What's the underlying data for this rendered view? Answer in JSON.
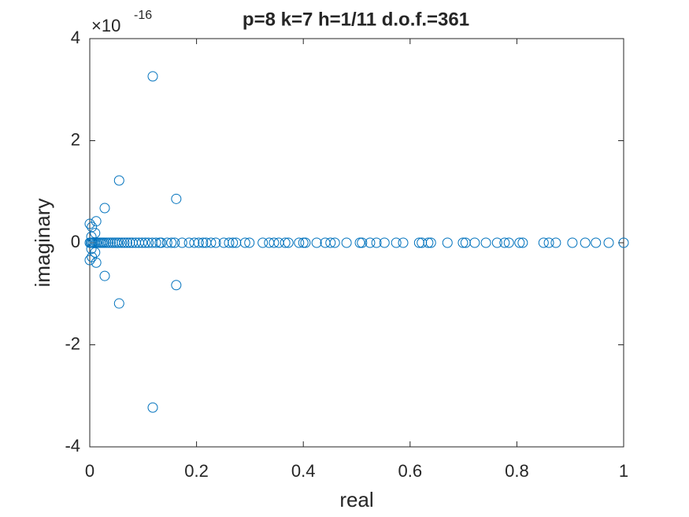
{
  "chart_data": {
    "type": "scatter",
    "title": "p=8 k=7 h=1/11 d.o.f.=361",
    "xlabel": "real",
    "ylabel": "imaginary",
    "y_exponent": {
      "base": "×10",
      "power": "-16"
    },
    "xlim": [
      0,
      1
    ],
    "ylim": [
      -4,
      4
    ],
    "xticks": [
      0,
      0.2,
      0.4,
      0.6,
      0.8,
      1
    ],
    "yticks": [
      -4,
      -2,
      0,
      2,
      4
    ],
    "marker": "open-circle",
    "series": [
      {
        "color": "#0072bd",
        "x": [
          0,
          0.002,
          0.004,
          0.006,
          0.009,
          0.012,
          0.015,
          0.018,
          0.021,
          0.024,
          0.027,
          0.031,
          0.035,
          0.039,
          0.043,
          0.047,
          0.051,
          0.055,
          0.06,
          0.065,
          0.07,
          0.075,
          0.08,
          0.086,
          0.092,
          0.098,
          0.104,
          0.11,
          0.117,
          0.124,
          0.131,
          0.134,
          0.145,
          0.153,
          0.159,
          0.173,
          0.186,
          0.196,
          0.204,
          0.212,
          0.218,
          0.227,
          0.236,
          0.251,
          0.261,
          0.268,
          0.274,
          0.291,
          0.299,
          0.324,
          0.336,
          0.345,
          0.354,
          0.366,
          0.372,
          0.392,
          0.4,
          0.404,
          0.425,
          0.441,
          0.451,
          0.459,
          0.481,
          0.506,
          0.51,
          0.525,
          0.537,
          0.552,
          0.574,
          0.587,
          0.617,
          0.622,
          0.634,
          0.639,
          0.67,
          0.699,
          0.704,
          0.721,
          0.742,
          0.763,
          0.777,
          0.785,
          0.805,
          0.811,
          0.85,
          0.86,
          0.873,
          0.904,
          0.928,
          0.948,
          0.972,
          1,
          0.118,
          0.118,
          0.055,
          0.055,
          0.162,
          0.162,
          0.028,
          0.028,
          0,
          0,
          0.012,
          0.012,
          0.004,
          0.004,
          0.01,
          0.01,
          0.003,
          0.003
        ],
        "y": [
          0,
          0,
          0,
          0,
          0,
          0,
          0,
          0,
          0,
          0,
          0,
          0,
          0,
          0,
          0,
          0,
          0,
          0,
          0,
          0,
          0,
          0,
          0,
          0,
          0,
          0,
          0,
          0,
          0,
          0,
          0,
          0,
          0,
          0,
          0,
          0,
          0,
          0,
          0,
          0,
          0,
          0,
          0,
          0,
          0,
          0,
          0,
          0,
          0,
          0,
          0,
          0,
          0,
          0,
          0,
          0,
          0,
          0,
          0,
          0,
          0,
          0,
          0,
          0,
          0,
          0,
          0,
          0,
          0,
          0,
          0,
          0,
          0,
          0,
          0,
          0,
          0,
          0,
          0,
          0,
          0,
          0,
          0,
          0,
          0,
          0,
          0,
          0,
          0,
          0,
          0,
          0,
          3.26,
          -3.23,
          1.22,
          -1.19,
          0.86,
          -0.83,
          0.68,
          -0.65,
          0.37,
          -0.34,
          0.42,
          -0.39,
          0.31,
          -0.28,
          0.19,
          -0.19,
          0.12,
          -0.12
        ]
      }
    ]
  }
}
